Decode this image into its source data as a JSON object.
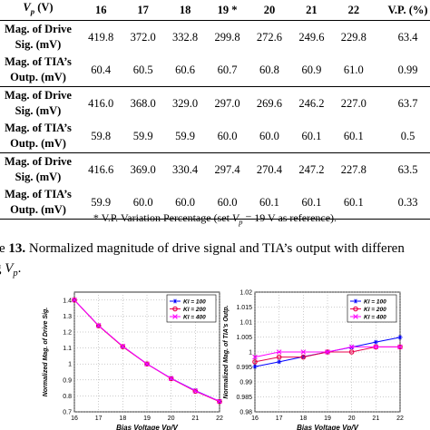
{
  "table": {
    "header": [
      "V_p (V)",
      "16",
      "17",
      "18",
      "19 *",
      "20",
      "21",
      "22",
      "V.P. (%)"
    ],
    "groups": [
      {
        "rows": [
          {
            "label": [
              "Mag. of Drive",
              "Sig. (mV)"
            ],
            "values": [
              "419.8",
              "372.0",
              "332.8",
              "299.8",
              "272.6",
              "249.6",
              "229.8",
              "63.4"
            ]
          },
          {
            "label": [
              "Mag. of TIA’s",
              "Outp. (mV)"
            ],
            "values": [
              "60.4",
              "60.5",
              "60.6",
              "60.7",
              "60.8",
              "60.9",
              "61.0",
              "0.99"
            ]
          }
        ]
      },
      {
        "rows": [
          {
            "label": [
              "Mag. of Drive",
              "Sig. (mV)"
            ],
            "values": [
              "416.0",
              "368.0",
              "329.0",
              "297.0",
              "269.6",
              "246.2",
              "227.0",
              "63.7"
            ]
          },
          {
            "label": [
              "Mag. of TIA’s",
              "Outp. (mV)"
            ],
            "values": [
              "59.8",
              "59.9",
              "59.9",
              "60.0",
              "60.0",
              "60.1",
              "60.1",
              "0.5"
            ]
          }
        ]
      },
      {
        "rows": [
          {
            "label": [
              "Mag. of Drive",
              "Sig. (mV)"
            ],
            "values": [
              "416.6",
              "369.0",
              "330.4",
              "297.4",
              "270.4",
              "247.2",
              "227.8",
              "63.5"
            ]
          },
          {
            "label": [
              "Mag. of TIA’s",
              "Outp. (mV)"
            ],
            "values": [
              "59.9",
              "60.0",
              "60.0",
              "60.0",
              "60.1",
              "60.1",
              "60.1",
              "0.33"
            ]
          }
        ]
      }
    ]
  },
  "footnote": "* V.P. Variation Percentage (set V_p = 19 V as reference).",
  "caption": {
    "prefix": "re ",
    "figure": "13.",
    "line1": " Normalized magnitude of drive signal and TIA’s output with differen",
    "line2": "g V_p."
  },
  "chart_data": [
    {
      "type": "line",
      "x": [
        16,
        17,
        18,
        19,
        20,
        21,
        22
      ],
      "xlabel": "Bias Voltage Vp/V",
      "ylabel": "Normalized Mag. of Drive Sig.",
      "xlim": [
        16,
        22
      ],
      "ylim": [
        0.7,
        1.45
      ],
      "x_ticks": [
        "16",
        "17",
        "18",
        "19",
        "20",
        "21",
        "22"
      ],
      "y_ticks": [
        "0.7",
        "0.8",
        "0.9",
        "1",
        "1.1",
        "1.2",
        "1.3",
        "1.4"
      ],
      "grid": true,
      "legend": "top-right",
      "series": [
        {
          "name": "Kl = 100",
          "color": "#0000ff",
          "marker": "*",
          "values": [
            1.4,
            1.24,
            1.11,
            1.0,
            0.91,
            0.833,
            0.766
          ]
        },
        {
          "name": "Kl = 200",
          "color": "#e8004c",
          "marker": "o",
          "values": [
            1.4,
            1.239,
            1.108,
            1.0,
            0.908,
            0.829,
            0.764
          ]
        },
        {
          "name": "Kl = 400",
          "color": "#ff00ff",
          "marker": "x",
          "values": [
            1.401,
            1.241,
            1.111,
            1.0,
            0.909,
            0.831,
            0.766
          ]
        }
      ]
    },
    {
      "type": "line",
      "x": [
        16,
        17,
        18,
        19,
        20,
        21,
        22
      ],
      "xlabel": "Bias Voltage Vp/V",
      "ylabel": "Normalized Mag. of TIA's Outp.",
      "xlim": [
        16,
        22
      ],
      "ylim": [
        0.98,
        1.02
      ],
      "x_ticks": [
        "16",
        "17",
        "18",
        "19",
        "20",
        "21",
        "22"
      ],
      "y_ticks": [
        "0.98",
        "0.985",
        "0.99",
        "0.995",
        "1",
        "1.005",
        "1.01",
        "1.015",
        "1.02"
      ],
      "grid": true,
      "legend": "top-right",
      "series": [
        {
          "name": "Kl = 100",
          "color": "#0000ff",
          "marker": "*",
          "values": [
            0.9951,
            0.9967,
            0.9984,
            1.0,
            1.0016,
            1.0033,
            1.0049
          ]
        },
        {
          "name": "Kl = 200",
          "color": "#e8004c",
          "marker": "o",
          "values": [
            0.9967,
            0.9983,
            0.9983,
            1.0,
            1.0,
            1.0017,
            1.0017
          ]
        },
        {
          "name": "Kl = 400",
          "color": "#ff00ff",
          "marker": "x",
          "values": [
            0.9983,
            1.0,
            1.0,
            1.0,
            1.0017,
            1.0017,
            1.0017
          ]
        }
      ]
    }
  ]
}
